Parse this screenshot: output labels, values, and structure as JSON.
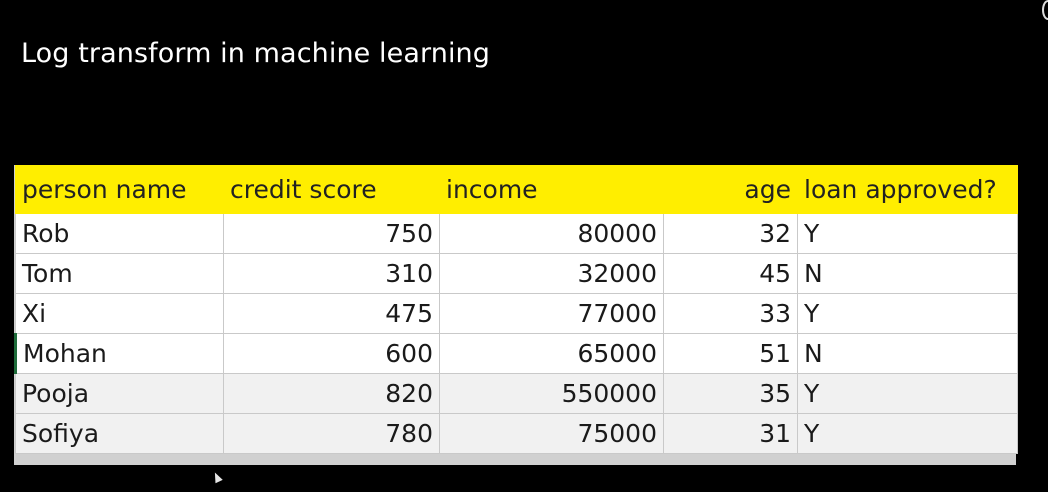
{
  "slide": {
    "title": "Log transform in machine learning"
  },
  "table": {
    "columns": [
      "person name",
      "credit score",
      "income",
      "age",
      "loan approved?"
    ],
    "rows": [
      {
        "name": "Rob",
        "credit_score": "750",
        "income": "80000",
        "age": "32",
        "loan": "Y"
      },
      {
        "name": "Tom",
        "credit_score": "310",
        "income": "32000",
        "age": "45",
        "loan": "N"
      },
      {
        "name": "Xi",
        "credit_score": "475",
        "income": "77000",
        "age": "33",
        "loan": "Y"
      },
      {
        "name": "Mohan",
        "credit_score": "600",
        "income": "65000",
        "age": "51",
        "loan": "N"
      },
      {
        "name": "Pooja",
        "credit_score": "820",
        "income": "550000",
        "age": "35",
        "loan": "Y"
      },
      {
        "name": "Sofiya",
        "credit_score": "780",
        "income": "75000",
        "age": "31",
        "loan": "Y"
      }
    ]
  },
  "colors": {
    "background": "#000000",
    "header_highlight": "#ffee00",
    "title_text": "#ffffff"
  },
  "icons": {
    "cursor": "mouse-pointer-icon"
  }
}
